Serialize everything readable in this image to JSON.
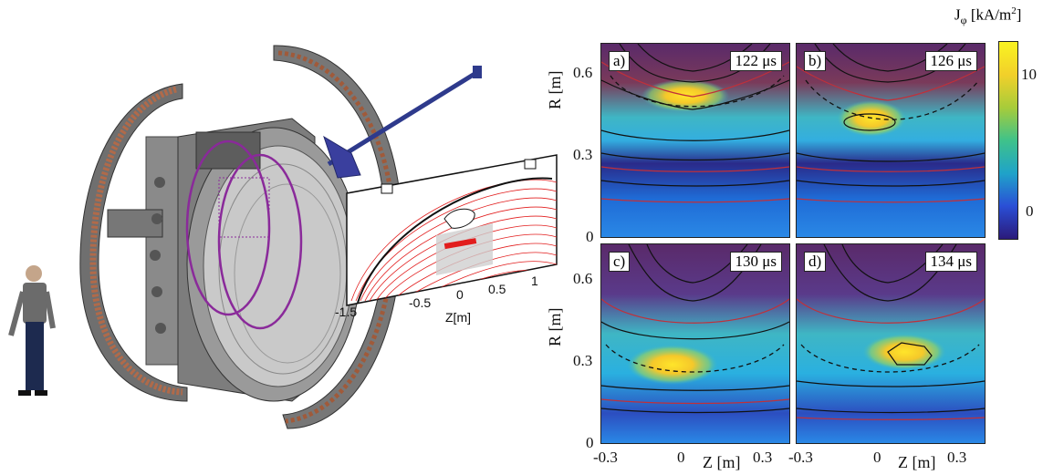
{
  "apparatus": {
    "inset_ticks": [
      "-1.5",
      "-0.5",
      "0",
      "0.5",
      "1"
    ],
    "inset_xlabel": "Z[m]"
  },
  "colorbar": {
    "title": "J",
    "title_sub": "φ",
    "title_unit": "[kA/m",
    "title_sup": "2",
    "title_close": "]",
    "ticks": [
      "10",
      "0"
    ],
    "colors": [
      "#2b1a7a",
      "#2a4fd6",
      "#1fa3c9",
      "#3fc28a",
      "#a7cc3a",
      "#f2d02a",
      "#f9f321"
    ]
  },
  "panels": [
    {
      "label": "a)",
      "time": "122 μs"
    },
    {
      "label": "b)",
      "time": "126 μs"
    },
    {
      "label": "c)",
      "time": "130 μs"
    },
    {
      "label": "d)",
      "time": "134 μs"
    }
  ],
  "axes": {
    "r_ticks_top": [
      "0.6",
      "0.3",
      "0"
    ],
    "r_ticks_bottom": [
      "0.6",
      "0.3",
      "0"
    ],
    "r_label": "R [m]",
    "z_ticks_left": [
      "-0.3",
      "0",
      "0.3"
    ],
    "z_ticks_right": [
      "-0.3",
      "0",
      "0.3"
    ],
    "z_label": "Z [m]"
  }
}
